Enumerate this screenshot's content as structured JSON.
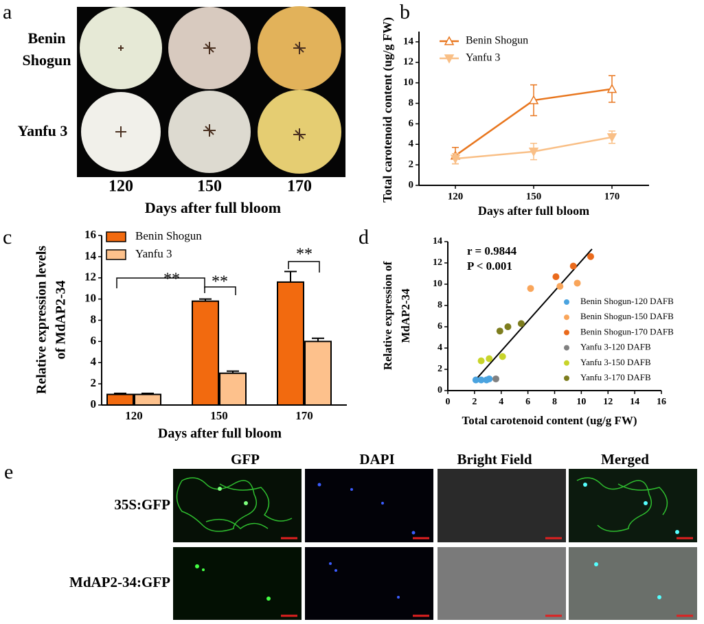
{
  "panel_a": {
    "label": "a",
    "rows": [
      [
        "Benin",
        "Shogun"
      ],
      [
        "Yanfu 3"
      ]
    ],
    "columns": [
      "120",
      "150",
      "170"
    ],
    "xlabel": "Days after full bloom"
  },
  "chart_data": [
    {
      "label": "b",
      "type": "line",
      "ylabel": "Total carotenoid content (ug/g FW)",
      "xlabel": "Days after full bloom",
      "categories": [
        "120",
        "150",
        "170"
      ],
      "series": [
        {
          "name": "Benin Shogun",
          "color": "#e8761e",
          "marker": "triangle-up",
          "values": [
            2.9,
            8.3,
            9.4
          ],
          "errors": [
            0.8,
            1.5,
            1.3
          ]
        },
        {
          "name": "Yanfu 3",
          "color": "#f9bf86",
          "marker": "triangle-down",
          "values": [
            2.6,
            3.3,
            4.7
          ],
          "errors": [
            0.5,
            0.8,
            0.6
          ]
        }
      ],
      "ylim": [
        0,
        15
      ],
      "yticks": [
        0,
        2,
        4,
        6,
        8,
        10,
        12,
        14
      ]
    },
    {
      "label": "c",
      "type": "bar",
      "ylabel": [
        "Relative expression levels",
        "of MdAP2-34"
      ],
      "xlabel": "Days after full bloom",
      "categories": [
        "120",
        "150",
        "170"
      ],
      "series": [
        {
          "name": "Benin Shogun",
          "color": "#f26a0f",
          "values": [
            1.0,
            9.8,
            11.6
          ],
          "errors": [
            0.1,
            0.2,
            1.0
          ]
        },
        {
          "name": "Yanfu 3",
          "color": "#fdc18c",
          "values": [
            1.0,
            3.0,
            6.0
          ],
          "errors": [
            0.1,
            0.2,
            0.3
          ]
        }
      ],
      "annotations": [
        "**",
        "**",
        "**"
      ],
      "ylim": [
        0,
        16
      ],
      "yticks": [
        0,
        2,
        4,
        6,
        8,
        10,
        12,
        14,
        16
      ]
    },
    {
      "label": "d",
      "type": "scatter",
      "ylabel": [
        "Relative expression of",
        "MdAP2-34"
      ],
      "xlabel": "Total carotenoid content (ug/g FW)",
      "annotations": [
        "r = 0.9844",
        "P < 0.001"
      ],
      "series": [
        {
          "name": "Benin Shogun-120 DAFB",
          "color": "#4aa3df",
          "x": [
            2.1,
            2.5,
            2.9,
            3.1
          ],
          "values": [
            1.0,
            1.0,
            1.0,
            1.1
          ]
        },
        {
          "name": "Benin Shogun-150 DAFB",
          "color": "#f9a55a",
          "x": [
            6.2,
            8.4,
            9.7
          ],
          "values": [
            9.6,
            9.8,
            10.1
          ]
        },
        {
          "name": "Benin Shogun-170 DAFB",
          "color": "#ea6a1c",
          "x": [
            8.1,
            9.4,
            10.7
          ],
          "values": [
            10.7,
            11.7,
            12.6
          ]
        },
        {
          "name": "Yanfu 3-120 DAFB",
          "color": "#808080",
          "x": [
            3.6
          ],
          "values": [
            1.1
          ]
        },
        {
          "name": "Yanfu 3-150 DAFB",
          "color": "#c8d42a",
          "x": [
            2.5,
            3.1,
            4.1
          ],
          "values": [
            2.8,
            3.0,
            3.2
          ]
        },
        {
          "name": "Yanfu 3-170 DAFB",
          "color": "#7d7d1e",
          "x": [
            3.9,
            4.5,
            5.5
          ],
          "values": [
            5.6,
            6.0,
            6.3
          ]
        }
      ],
      "trend": {
        "x": [
          2.0,
          10.8
        ],
        "values": [
          0.9,
          13.3
        ]
      },
      "xlim": [
        0,
        16
      ],
      "xticks": [
        0,
        2,
        4,
        6,
        8,
        10,
        12,
        14,
        16
      ],
      "ylim": [
        0,
        14
      ],
      "yticks": [
        0,
        2,
        4,
        6,
        8,
        10,
        12,
        14
      ]
    }
  ],
  "panel_e": {
    "label": "e",
    "columns": [
      "GFP",
      "DAPI",
      "Bright Field",
      "Merged"
    ],
    "rows": [
      "35S:GFP",
      "MdAP2-34:GFP"
    ]
  }
}
